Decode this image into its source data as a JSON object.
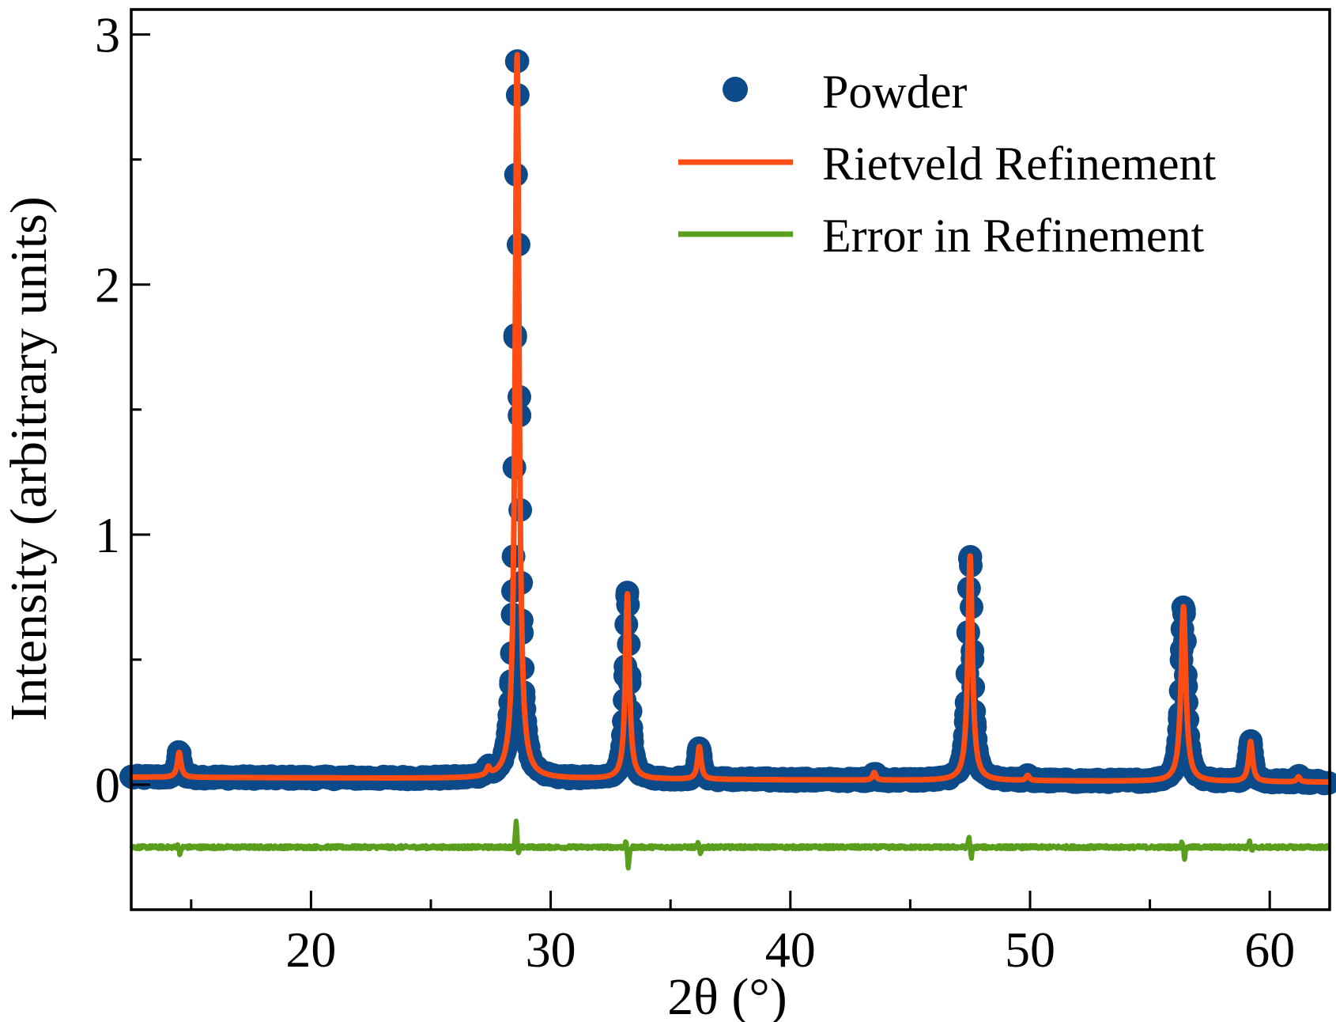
{
  "chart_data": {
    "type": "line",
    "title": "",
    "xlabel": "2θ (°)",
    "ylabel": "Intensity (arbitrary units)",
    "xlim": [
      12.5,
      62.5
    ],
    "ylim": [
      -0.5,
      3.1
    ],
    "x_ticks": [
      20,
      30,
      40,
      50,
      60
    ],
    "x_minor_ticks": [
      15,
      25,
      35,
      45,
      55
    ],
    "y_ticks": [
      0,
      1,
      2,
      3
    ],
    "y_minor_ticks": [
      0.5,
      1.5,
      2.5
    ],
    "x_tick_labels": [
      "20",
      "30",
      "40",
      "50",
      "60"
    ],
    "y_tick_labels": [
      "0",
      "1",
      "2",
      "3"
    ],
    "grid": false,
    "legend_position": "top-right",
    "baseline": {
      "start": 0.03,
      "end": 0.01
    },
    "peaks": [
      {
        "x": 14.5,
        "height": 0.1,
        "width": 0.09
      },
      {
        "x": 27.4,
        "height": 0.03,
        "width": 0.08
      },
      {
        "x": 28.6,
        "height": 2.9,
        "width": 0.1
      },
      {
        "x": 33.2,
        "height": 0.74,
        "width": 0.1
      },
      {
        "x": 36.2,
        "height": 0.13,
        "width": 0.09
      },
      {
        "x": 43.5,
        "height": 0.03,
        "width": 0.08
      },
      {
        "x": 47.5,
        "height": 0.9,
        "width": 0.11
      },
      {
        "x": 49.9,
        "height": 0.02,
        "width": 0.08
      },
      {
        "x": 56.4,
        "height": 0.7,
        "width": 0.12
      },
      {
        "x": 59.2,
        "height": 0.16,
        "width": 0.1
      },
      {
        "x": 61.2,
        "height": 0.02,
        "width": 0.08
      }
    ],
    "error_offset": -0.25,
    "error_features": [
      {
        "x": 28.6,
        "up": 0.11,
        "down": -0.04
      },
      {
        "x": 33.2,
        "up": 0.03,
        "down": -0.09
      },
      {
        "x": 36.2,
        "up": 0.02,
        "down": -0.03
      },
      {
        "x": 47.5,
        "up": 0.05,
        "down": -0.05
      },
      {
        "x": 56.4,
        "up": 0.03,
        "down": -0.05
      },
      {
        "x": 59.2,
        "up": 0.03,
        "down": -0.02
      },
      {
        "x": 14.5,
        "up": 0.01,
        "down": -0.03
      }
    ],
    "series": [
      {
        "name": "Powder",
        "kind": "scatter",
        "color": "#0d4a8a"
      },
      {
        "name": "Rietveld Refinement",
        "kind": "line",
        "color": "#ff4c12"
      },
      {
        "name": "Error in Refinement",
        "kind": "line",
        "color": "#5a9e1e"
      }
    ]
  }
}
